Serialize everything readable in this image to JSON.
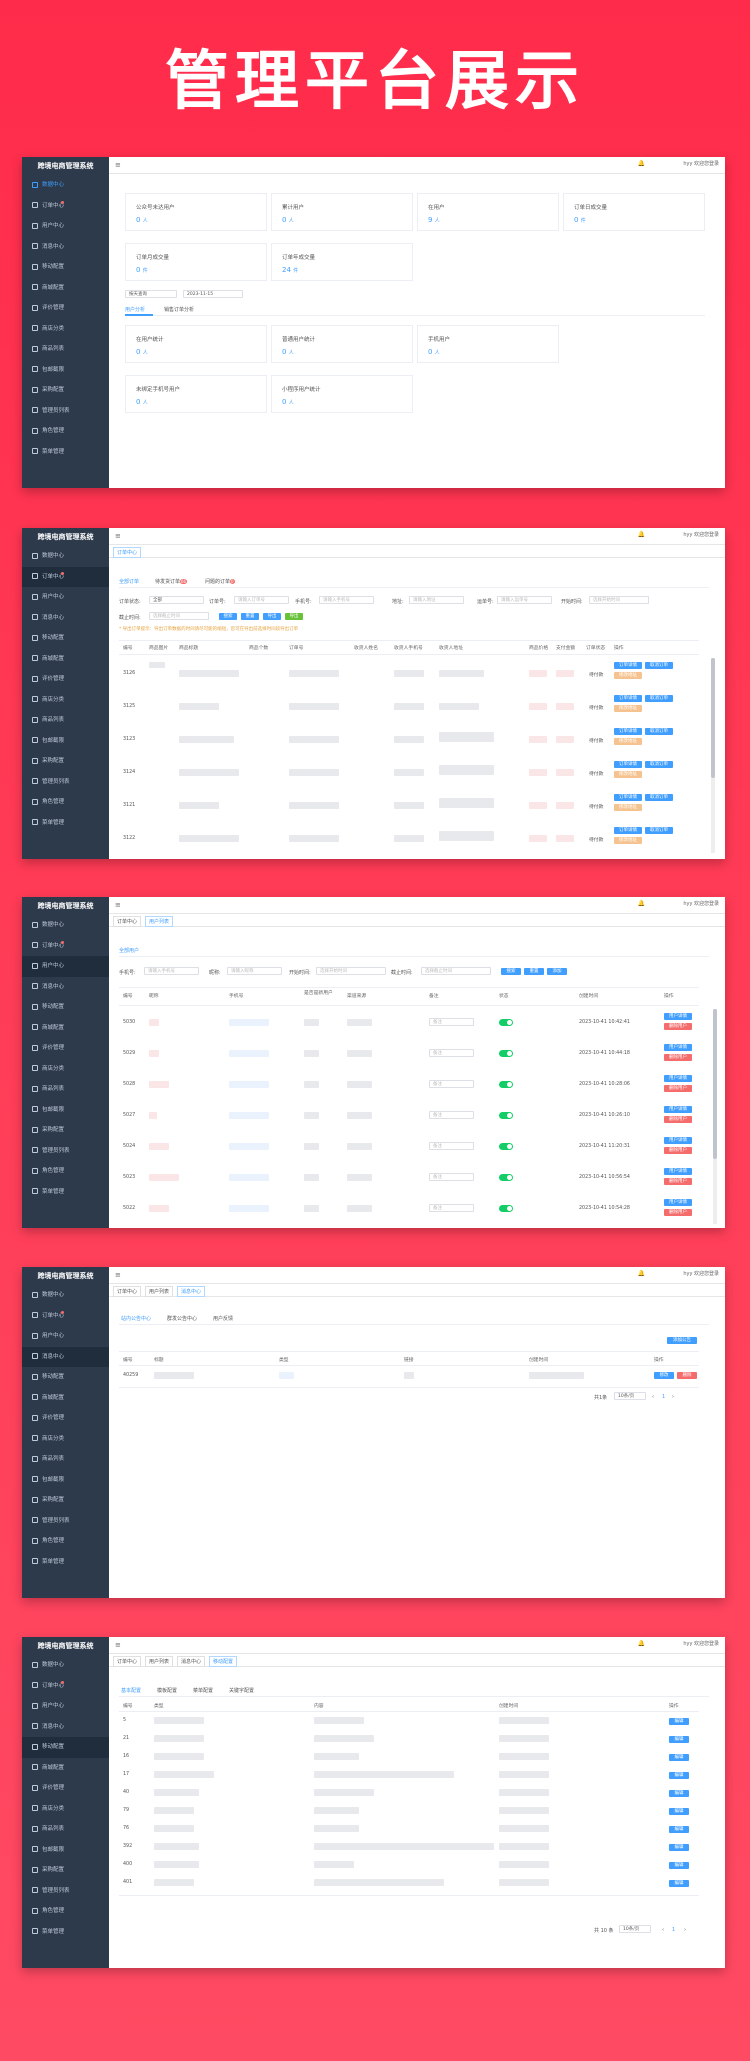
{
  "hero_title": "管理平台展示",
  "brand": "跨境电商管理系统",
  "topbar": {
    "user": "hyy 欢迎您登录"
  },
  "nav": [
    "数据中心",
    "订单中心",
    "用户中心",
    "消息中心",
    "移动配置",
    "商城配置",
    "评价管理",
    "商店分类",
    "商品列表",
    "包邮截限",
    "采购配置",
    "管理员列表",
    "角色管理",
    "菜单管理"
  ],
  "s1": {
    "cards1": [
      {
        "label": "公众号未达用户",
        "value": "0",
        "unit": "人"
      },
      {
        "label": "累计用户",
        "value": "0",
        "unit": "人"
      },
      {
        "label": "在用户",
        "value": "9",
        "unit": "人"
      },
      {
        "label": "订单日成交量",
        "value": "0",
        "unit": "件"
      }
    ],
    "cards2": [
      {
        "label": "订单月成交量",
        "value": "0",
        "unit": "件"
      },
      {
        "label": "订单年成交量",
        "value": "24",
        "unit": "件"
      }
    ],
    "filter_select": "按天查询",
    "filter_date": "2023-11-15",
    "tabs": [
      "用户分析",
      "销售订单分析"
    ],
    "cards3": [
      {
        "label": "在用户统计",
        "value": "0",
        "unit": "人"
      },
      {
        "label": "普通用户统计",
        "value": "0",
        "unit": "人"
      },
      {
        "label": "手机用户",
        "value": "0",
        "unit": "人"
      },
      {
        "label": "未绑定手机号用户",
        "value": "0",
        "unit": "人"
      },
      {
        "label": "小程序用户统计",
        "value": "0",
        "unit": "人"
      }
    ]
  },
  "s2": {
    "tab": "订单中心",
    "subtabs": [
      "全部订单",
      "待发货订单",
      "问题的订单"
    ],
    "badge1": "66",
    "badge2": "0",
    "filters": {
      "status_label": "订单状态:",
      "status_value": "全部",
      "order_label": "订单号:",
      "order_ph": "请输入订单号",
      "phone_label": "手机号:",
      "phone_ph": "请输入手机号",
      "addr_label": "地址:",
      "addr_ph": "请输入地址",
      "ship_label": "运单号:",
      "ship_ph": "请输入运单号",
      "start_label": "开始时间:",
      "start_ph": "选择开始时间",
      "end_label": "截止时间:",
      "end_ph": "选择截止时间"
    },
    "buttons": [
      "搜索",
      "重置",
      "导出",
      "导出"
    ],
    "notice": "* 导出订单提示：导出订单数据的时间请尽可能的缩短，您可在导出前选择时间段导出订单",
    "headers": [
      "编号",
      "商品图片",
      "商品标题",
      "商品个数",
      "订单号",
      "收货人姓名",
      "收货人手机号",
      "收货人地址",
      "商品价格",
      "支付金额",
      "订单状态",
      "操作"
    ],
    "ids": [
      "3126",
      "3125",
      "3123",
      "3124",
      "3121",
      "3122"
    ],
    "status": "待付款",
    "op1": "订单详情",
    "op2": "取消订单",
    "op3": "修改地址"
  },
  "s3": {
    "tabs": [
      "订单中心",
      "用户列表"
    ],
    "subtab": "全部用户",
    "filters": {
      "phone_label": "手机号:",
      "phone_ph": "请输入手机号",
      "nick_label": "昵称:",
      "nick_ph": "请输入昵称",
      "start_label": "开始时间:",
      "start_ph": "选择开始时间",
      "end_label": "截止时间:",
      "end_ph": "选择截止时间"
    },
    "buttons": [
      "搜索",
      "重置",
      "添加"
    ],
    "headers": [
      "编号",
      "昵称",
      "手机号",
      "是否是新用户",
      "渠道来源",
      "备注",
      "状态",
      "创建时间",
      "操作"
    ],
    "rows": [
      {
        "id": "5030",
        "time": "2023-10-41 10:42:41"
      },
      {
        "id": "5029",
        "time": "2023-10-41 10:44:18"
      },
      {
        "id": "5028",
        "time": "2023-10-41 10:28:06"
      },
      {
        "id": "5027",
        "time": "2023-10-41 10:26:10"
      },
      {
        "id": "5024",
        "time": "2023-10-41 11:20:31"
      },
      {
        "id": "5023",
        "time": "2023-10-41 10:56:54"
      },
      {
        "id": "5022",
        "time": "2023-10-41 10:54:28"
      }
    ],
    "remark_ph": "备注",
    "op1": "用户详情",
    "op2": "删除用户"
  },
  "s4": {
    "tabs": [
      "订单中心",
      "用户列表",
      "消息中心"
    ],
    "subtabs": [
      "站内公告中心",
      "群发公告中心",
      "用户反馈"
    ],
    "add_button": "添加公告",
    "headers": [
      "编号",
      "标题",
      "类型",
      "链接",
      "创建时间",
      "操作"
    ],
    "row_id": "40259",
    "op1": "修改",
    "op2": "删除",
    "pager_total": "共1条",
    "pager_size": "10条/页",
    "pager_page": "1"
  },
  "s5": {
    "tabs": [
      "订单中心",
      "用户列表",
      "消息中心",
      "移动配置"
    ],
    "subtabs": [
      "基本配置",
      "模板配置",
      "菜单配置",
      "关键字配置"
    ],
    "headers": [
      "编号",
      "类型",
      "内容",
      "创建时间",
      "操作"
    ],
    "ids": [
      "5",
      "21",
      "16",
      "17",
      "40",
      "79",
      "76",
      "392",
      "400",
      "401"
    ],
    "op": "编辑",
    "pager_total": "共 10 条",
    "pager_size": "10条/页",
    "pager_page": "1"
  }
}
